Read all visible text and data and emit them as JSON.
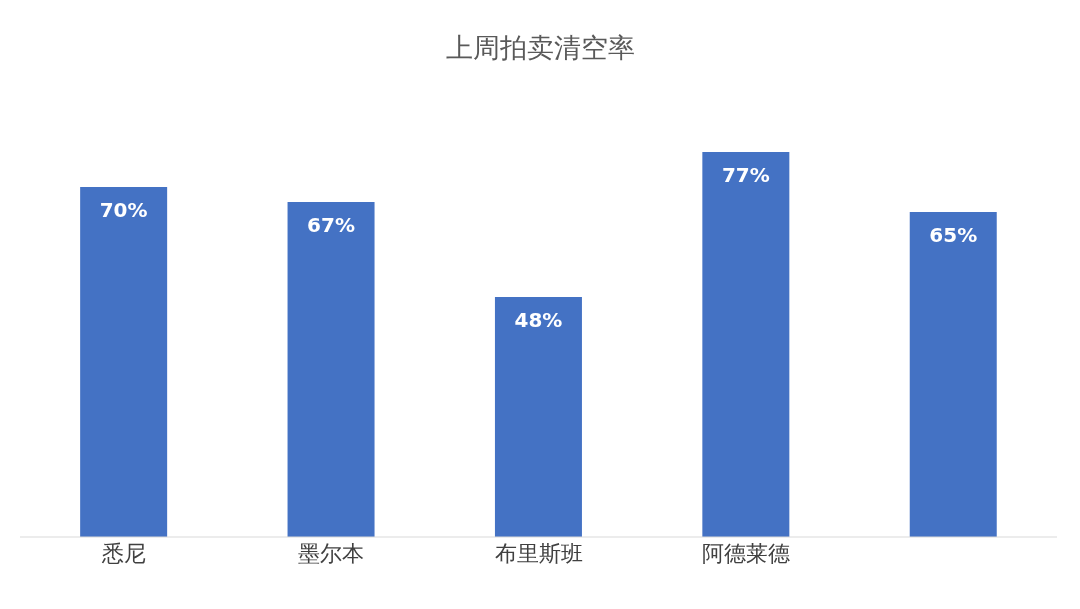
{
  "chart_data": {
    "type": "bar",
    "title": "上周拍卖清空率",
    "categories": [
      "悉尼",
      "墨尔本",
      "布里斯班",
      "阿德莱德",
      null
    ],
    "values": [
      70,
      67,
      48,
      77,
      65
    ],
    "value_labels": [
      "70%",
      "67%",
      "48%",
      "77%",
      "65%"
    ],
    "color": "#4472c4"
  }
}
